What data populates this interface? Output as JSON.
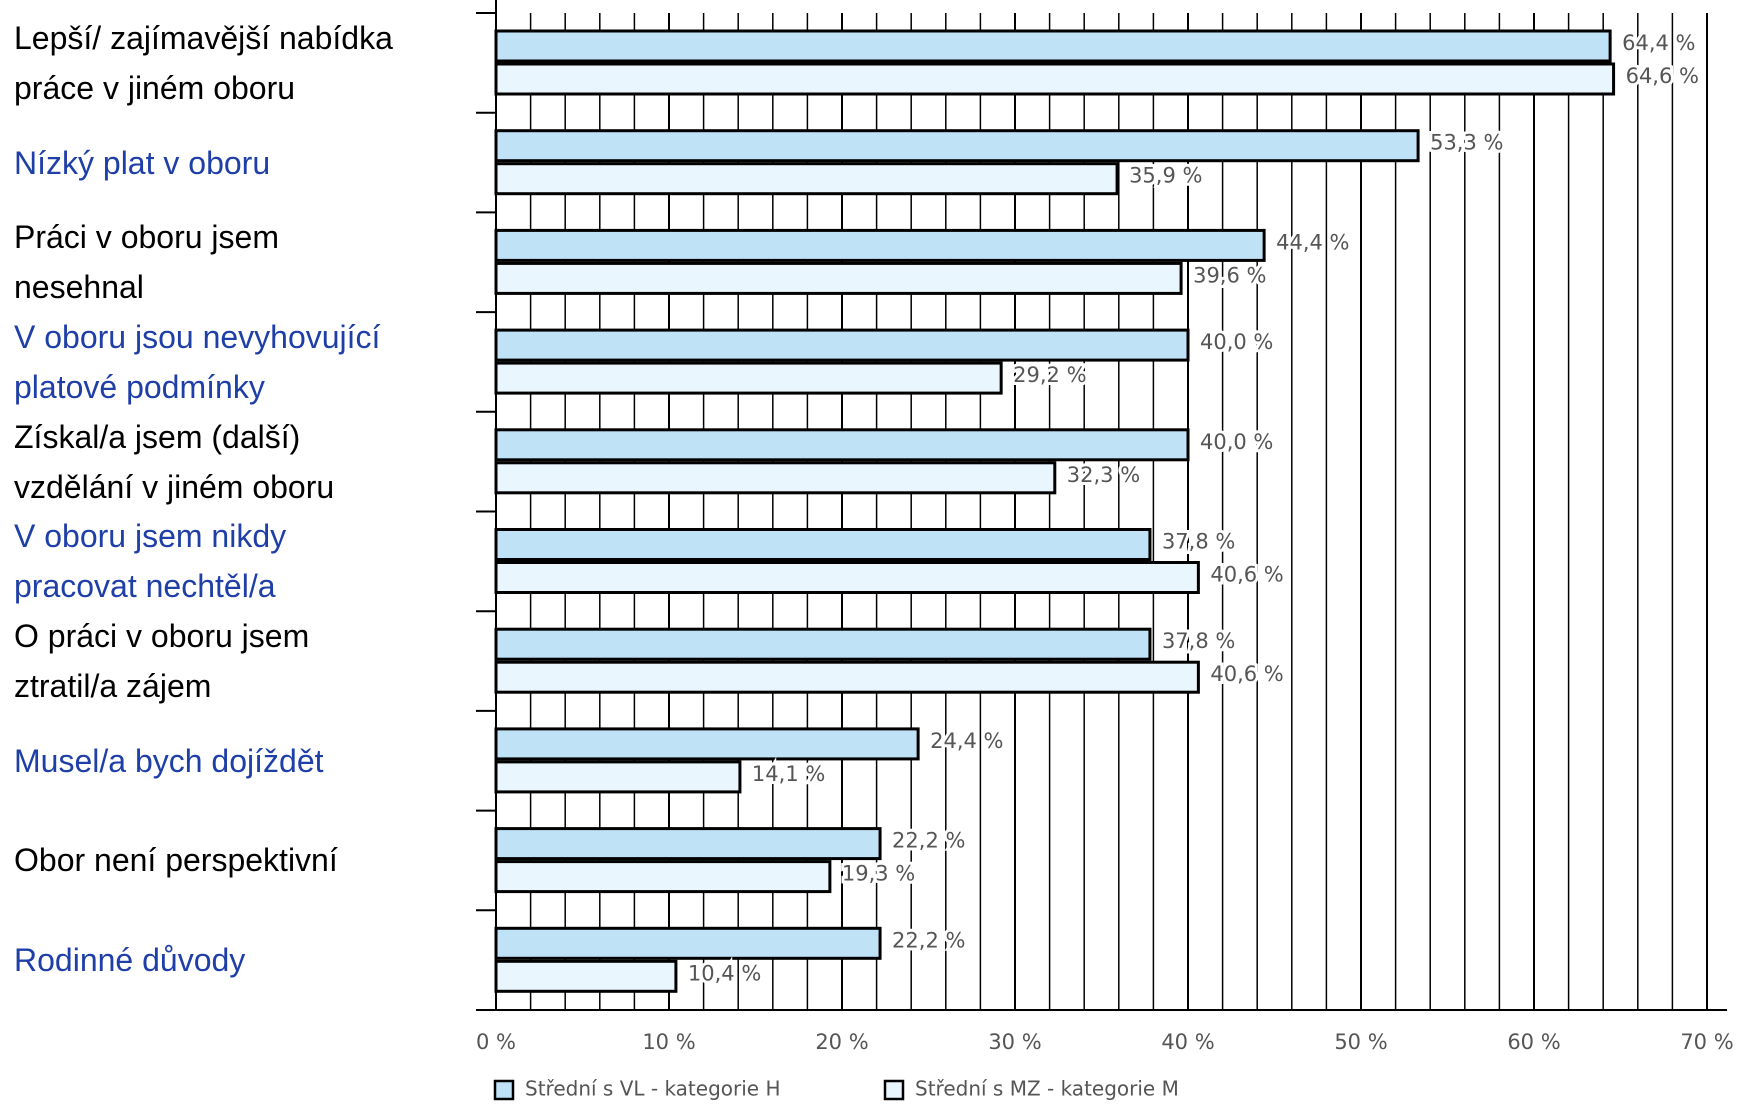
{
  "chart_data": {
    "type": "bar",
    "orientation": "horizontal",
    "categories": [
      "Lepší/ zajímavější nabídka\npráce v jiném oboru",
      "Nízký plat v oboru",
      "Práci v oboru jsem\nnesehnal",
      "V oboru jsou nevyhovující\nplatové podmínky",
      "Získal/a jsem (další)\nvzdělání v jiném oboru",
      "V oboru jsem nikdy\npracovat nechtěl/a",
      "O práci v oboru jsem\nztratil/a zájem",
      "Musel/a bych dojíždět",
      "Obor není perspektivní",
      "Rodinné důvody"
    ],
    "category_colors": [
      "#000000",
      "#1f3fa8",
      "#000000",
      "#1f3fa8",
      "#000000",
      "#1f3fa8",
      "#000000",
      "#1f3fa8",
      "#000000",
      "#1f3fa8"
    ],
    "series": [
      {
        "name": "Střední s VL - kategorie H",
        "color": "#bfe2f7",
        "values": [
          64.4,
          53.3,
          44.4,
          40.0,
          40.0,
          37.8,
          37.8,
          24.4,
          22.2,
          22.2
        ],
        "value_labels": [
          "64,4 %",
          "53,3 %",
          "44,4 %",
          "40,0 %",
          "40,0 %",
          "37,8 %",
          "37,8 %",
          "24,4 %",
          "22,2 %",
          "22,2 %"
        ]
      },
      {
        "name": "Střední s MZ - kategorie M",
        "color": "#eaf6fd",
        "values": [
          64.6,
          35.9,
          39.6,
          29.2,
          32.3,
          40.6,
          40.6,
          14.1,
          19.3,
          10.4
        ],
        "value_labels": [
          "64,6 %",
          "35,9 %",
          "39,6 %",
          "29,2 %",
          "32,3 %",
          "40,6 %",
          "40,6 %",
          "14,1 %",
          "19,3 %",
          "10,4 %"
        ]
      }
    ],
    "xlim": [
      0,
      70
    ],
    "xticks": [
      {
        "value": 0,
        "label": "0 %"
      },
      {
        "value": 10,
        "label": "10 %"
      },
      {
        "value": 20,
        "label": "20 %"
      },
      {
        "value": 30,
        "label": "30 %"
      },
      {
        "value": 40,
        "label": "40 %"
      },
      {
        "value": 50,
        "label": "50 %"
      },
      {
        "value": 60,
        "label": "60 %"
      },
      {
        "value": 70,
        "label": "70 %"
      }
    ],
    "grid": true
  }
}
